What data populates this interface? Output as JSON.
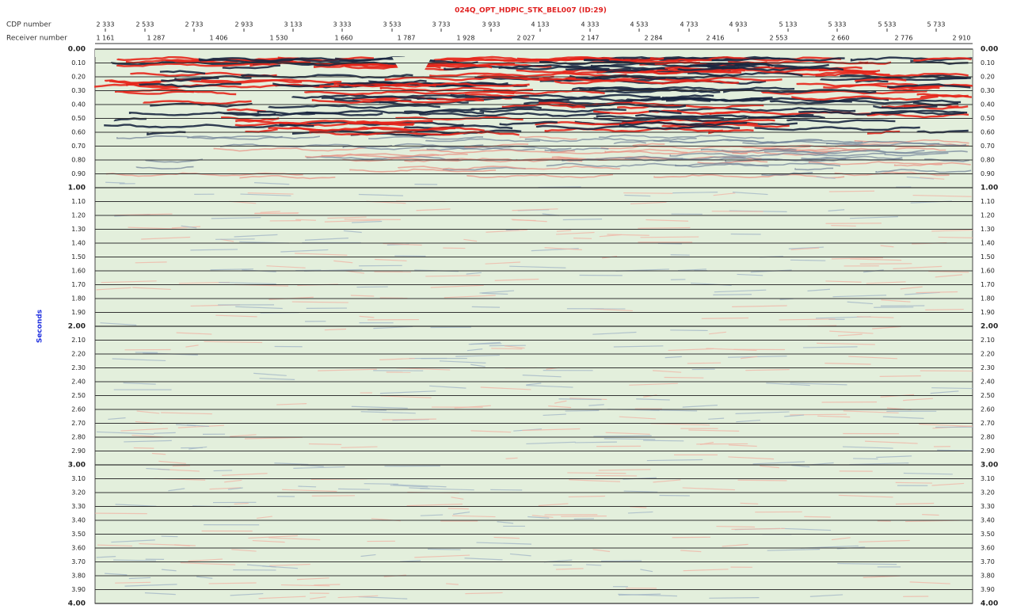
{
  "header": {
    "title": "024Q_OPT_HDPIC_STK_BEL007 (ID:29)",
    "cdp_label": "CDP number",
    "receiver_label": "Receiver number",
    "y_label": "Seconds"
  },
  "cdp_ticks": [
    "2 333",
    "2 533",
    "2 733",
    "2 933",
    "3 133",
    "3 333",
    "3 533",
    "3 733",
    "3 933",
    "4 133",
    "4 333",
    "4 533",
    "4 733",
    "4 933",
    "5 133",
    "5 333",
    "5 533",
    "5 733"
  ],
  "receiver_ticks": [
    "1 161",
    "1 287",
    "1 406",
    "1 530",
    "1 660",
    "1 787",
    "1 928",
    "2 027",
    "2 147",
    "2 284",
    "2 416",
    "2 553",
    "2 660",
    "2 776",
    "2 910"
  ],
  "time_ticks": [
    "0.00",
    "0.10",
    "0.20",
    "0.30",
    "0.40",
    "0.50",
    "0.60",
    "0.70",
    "0.80",
    "0.90",
    "1.00",
    "1.10",
    "1.20",
    "1.30",
    "1.40",
    "1.50",
    "1.60",
    "1.70",
    "1.80",
    "1.90",
    "2.00",
    "2.10",
    "2.20",
    "2.30",
    "2.40",
    "2.50",
    "2.60",
    "2.70",
    "2.80",
    "2.90",
    "3.00",
    "3.10",
    "3.20",
    "3.30",
    "3.40",
    "3.50",
    "3.60",
    "3.70",
    "3.80",
    "3.90",
    "4.00"
  ]
}
